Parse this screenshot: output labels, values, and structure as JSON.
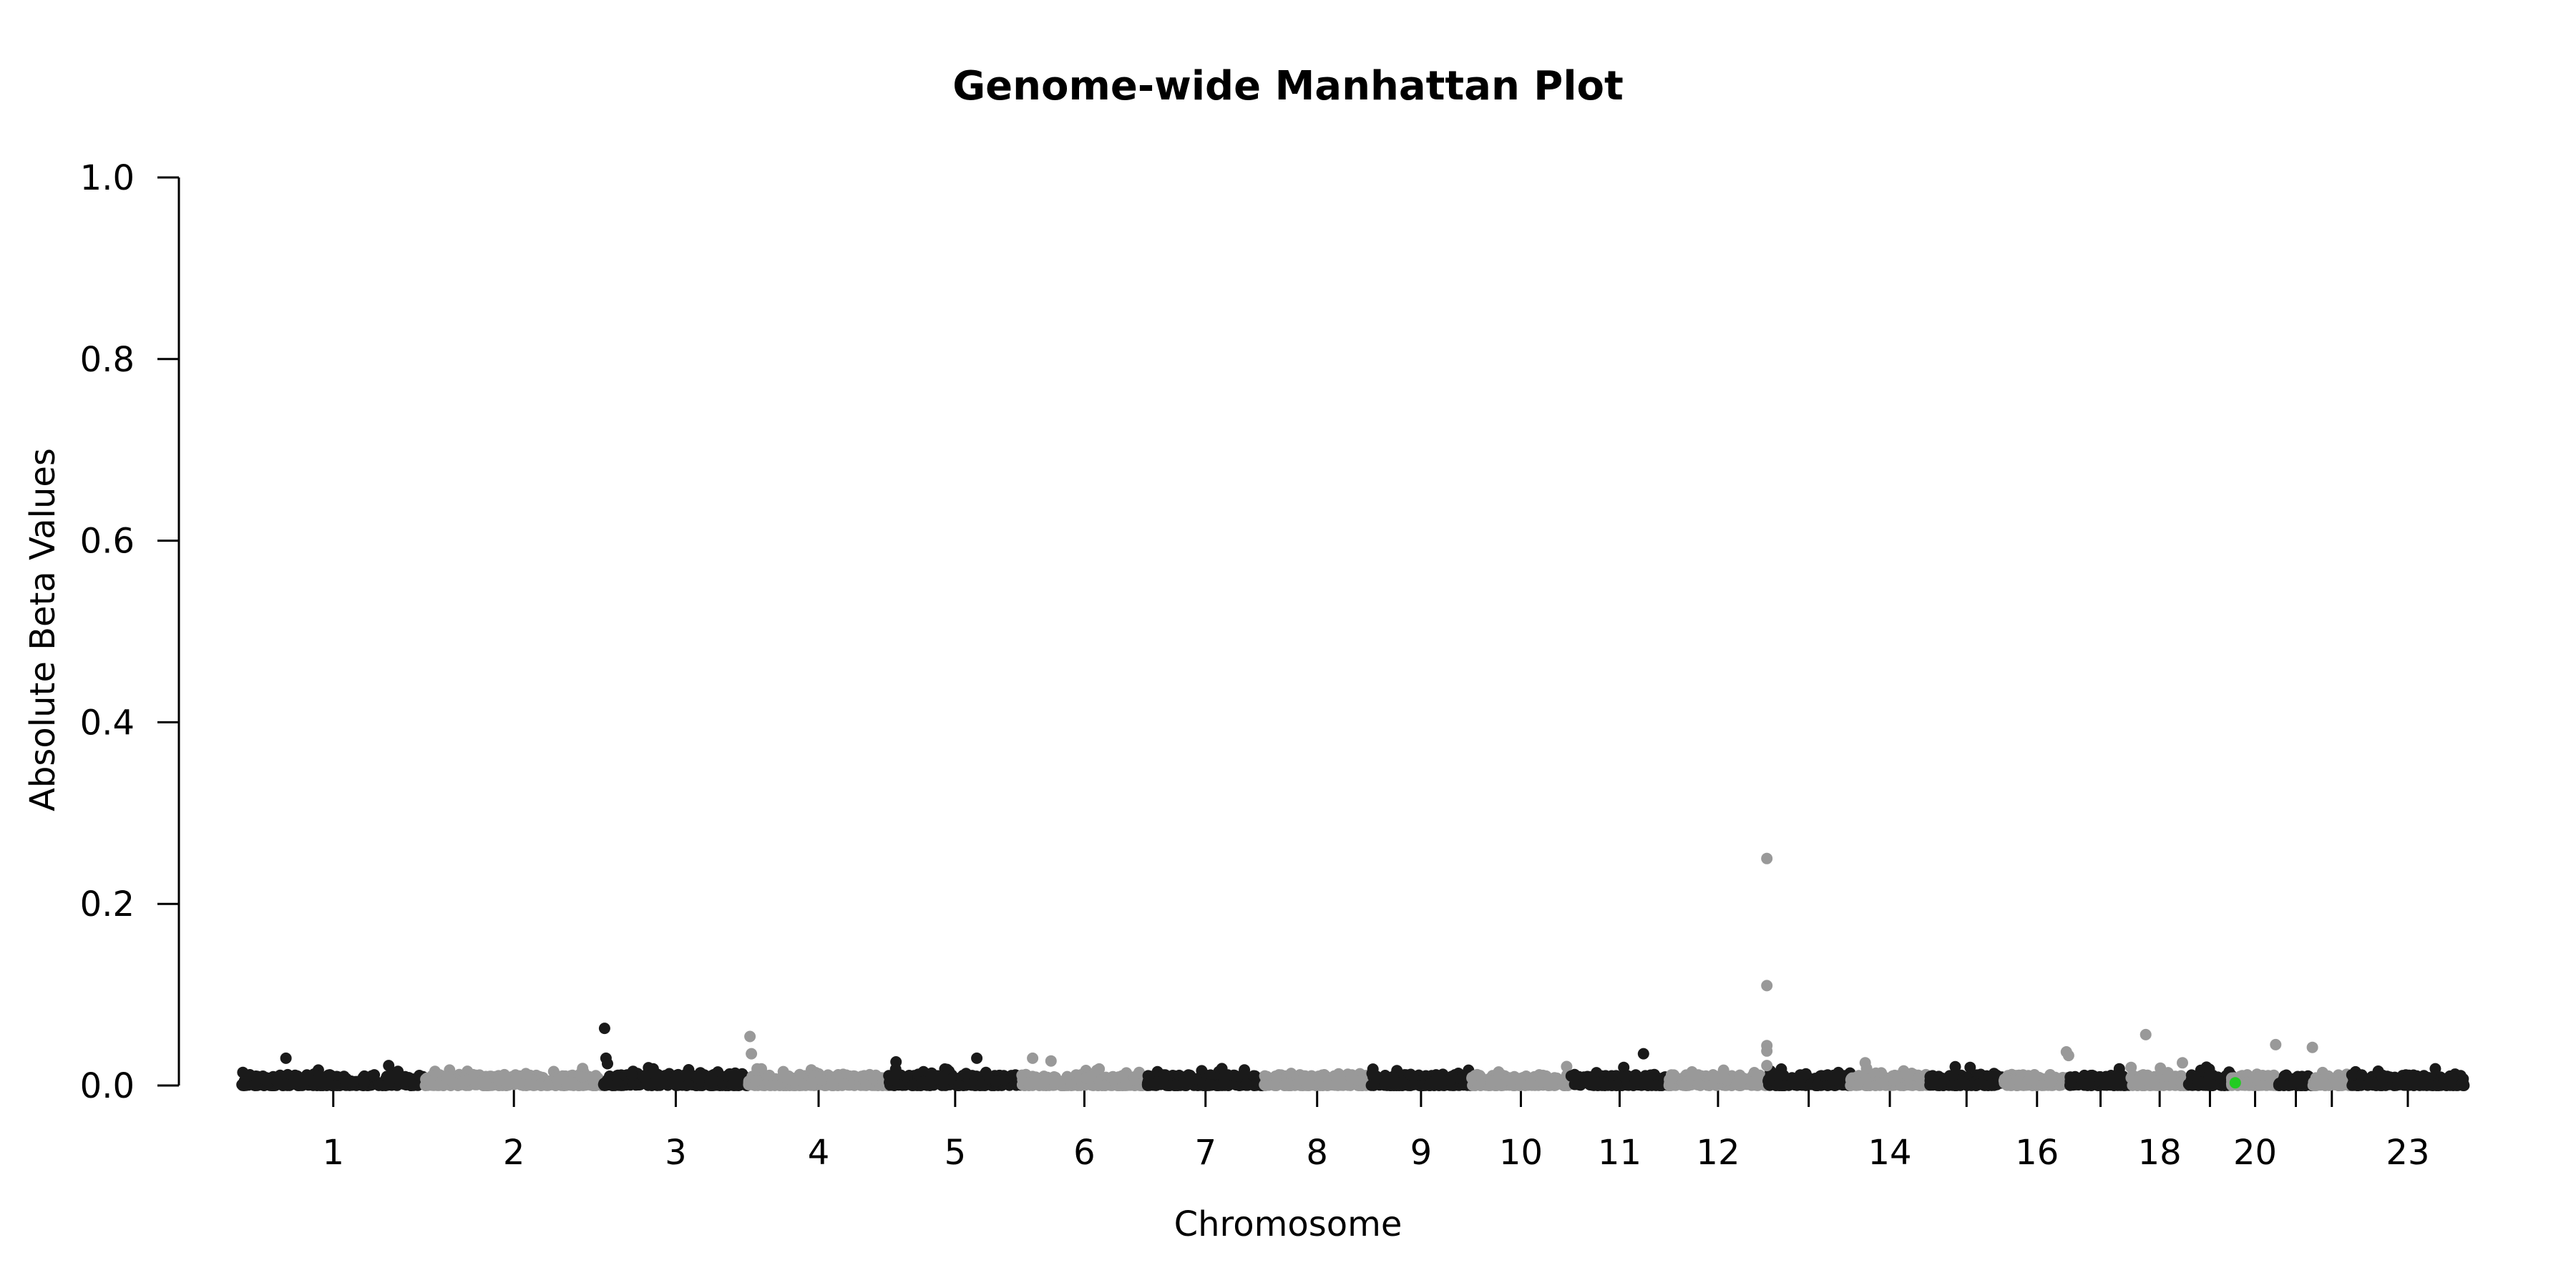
{
  "chart_data": {
    "type": "scatter",
    "title": "Genome-wide Manhattan Plot",
    "xlabel": "Chromosome",
    "ylabel": "Absolute Beta Values",
    "ylim": [
      0,
      1.0
    ],
    "yticks": [
      "0.0",
      "0.2",
      "0.4",
      "0.6",
      "0.8",
      "1.0"
    ],
    "grid": false,
    "legend": "none",
    "colors": {
      "odd": "#1a1a1a",
      "even": "#999999",
      "highlight": "#22cc22"
    },
    "chromosomes": [
      {
        "label": "1",
        "length": 249
      },
      {
        "label": "2",
        "length": 243
      },
      {
        "label": "3",
        "length": 198
      },
      {
        "label": "4",
        "length": 191
      },
      {
        "label": "5",
        "length": 181
      },
      {
        "label": "6",
        "length": 171
      },
      {
        "label": "7",
        "length": 159
      },
      {
        "label": "8",
        "length": 145
      },
      {
        "label": "9",
        "length": 138
      },
      {
        "label": "10",
        "length": 134
      },
      {
        "label": "11",
        "length": 135
      },
      {
        "label": "12",
        "length": 133
      },
      {
        "label": "",
        "length": 114
      },
      {
        "label": "14",
        "length": 107
      },
      {
        "label": "",
        "length": 102
      },
      {
        "label": "16",
        "length": 90
      },
      {
        "label": "",
        "length": 83
      },
      {
        "label": "18",
        "length": 78
      },
      {
        "label": "",
        "length": 59
      },
      {
        "label": "20",
        "length": 64
      },
      {
        "label": "",
        "length": 47
      },
      {
        "label": "",
        "length": 51
      },
      {
        "label": "23",
        "length": 156
      }
    ],
    "notable_points": [
      {
        "chr": "1",
        "pos": 60,
        "y": 0.03
      },
      {
        "chr": "1",
        "pos": 200,
        "y": 0.022
      },
      {
        "chr": "3",
        "pos": 2,
        "y": 0.063
      },
      {
        "chr": "3",
        "pos": 4,
        "y": 0.03
      },
      {
        "chr": "3",
        "pos": 6,
        "y": 0.024
      },
      {
        "chr": "4",
        "pos": 2,
        "y": 0.054
      },
      {
        "chr": "4",
        "pos": 4,
        "y": 0.035
      },
      {
        "chr": "5",
        "pos": 10,
        "y": 0.026
      },
      {
        "chr": "5",
        "pos": 120,
        "y": 0.03
      },
      {
        "chr": "6",
        "pos": 15,
        "y": 0.03
      },
      {
        "chr": "6",
        "pos": 40,
        "y": 0.027
      },
      {
        "chr": "11",
        "pos": 100,
        "y": 0.035
      },
      {
        "chr": "12",
        "pos": 133,
        "y": 0.25
      },
      {
        "chr": "12",
        "pos": 133,
        "y": 0.11
      },
      {
        "chr": "12",
        "pos": 133,
        "y": 0.044
      },
      {
        "chr": "12",
        "pos": 133,
        "y": 0.038
      },
      {
        "chr": "12",
        "pos": 133,
        "y": 0.022
      },
      {
        "chr": "14",
        "pos": 20,
        "y": 0.025
      },
      {
        "chr": "16",
        "pos": 85,
        "y": 0.037
      },
      {
        "chr": "16",
        "pos": 88,
        "y": 0.033
      },
      {
        "chr": "18",
        "pos": 20,
        "y": 0.056
      },
      {
        "chr": "18",
        "pos": 70,
        "y": 0.025
      },
      {
        "chr": "20",
        "pos": 60,
        "y": 0.045
      },
      {
        "chr": "20",
        "pos": 110,
        "y": 0.042
      }
    ]
  }
}
